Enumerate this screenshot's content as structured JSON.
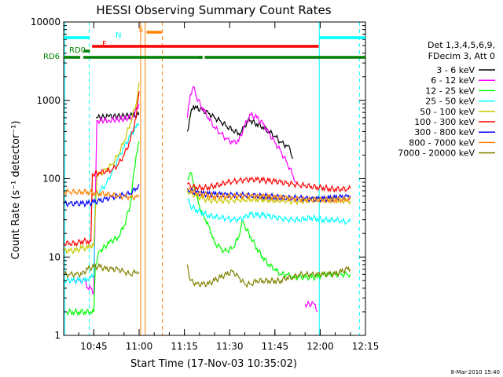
{
  "chart_data": {
    "type": "line",
    "title": "HESSI Observing Summary Count Rates",
    "xlabel": "Start Time (17-Nov-03 10:35:02)",
    "ylabel": "Count Rate (s⁻¹ detector⁻¹)",
    "y_scale": "log",
    "ylim": [
      1,
      10000
    ],
    "xlim_minutes_after_10_35": [
      0,
      100
    ],
    "x_ticks": [
      {
        "label": "10:45",
        "minute": 10
      },
      {
        "label": "11:00",
        "minute": 25
      },
      {
        "label": "11:15",
        "minute": 40
      },
      {
        "label": "11:30",
        "minute": 55
      },
      {
        "label": "11:45",
        "minute": 70
      },
      {
        "label": "12:00",
        "minute": 85
      },
      {
        "label": "12:15",
        "minute": 100
      }
    ],
    "y_ticks": [
      {
        "label": "1",
        "value": 1
      },
      {
        "label": "10",
        "value": 10
      },
      {
        "label": "100",
        "value": 100
      },
      {
        "label": "1000",
        "value": 1000
      },
      {
        "label": "10000",
        "value": 10000
      }
    ],
    "legend_header": [
      "Det 1,3,4,5,6,9,",
      "FDecim 3, Att 0"
    ],
    "legend_position": "right",
    "series": [
      {
        "name": "3 - 6 keV",
        "color": "#000000",
        "x": [
          10.7,
          11,
          15,
          20,
          23,
          25,
          25.3,
          26,
          30,
          40,
          41,
          42,
          43,
          44,
          46,
          48,
          50,
          52,
          54,
          56,
          58,
          59,
          60,
          61,
          62,
          64,
          66,
          68,
          70,
          72,
          74,
          75,
          76
        ],
        "y": [
          600,
          600,
          620,
          630,
          640,
          650,
          null,
          null,
          null,
          null,
          400,
          650,
          850,
          800,
          750,
          680,
          600,
          540,
          470,
          420,
          380,
          400,
          470,
          550,
          550,
          500,
          460,
          400,
          350,
          290,
          260,
          240,
          180
        ]
      },
      {
        "name": "6 - 12 keV",
        "color": "#ff00ff",
        "x": [
          3,
          5,
          7,
          8,
          9,
          10,
          10.5,
          11,
          15,
          20,
          23,
          25,
          25.3,
          41,
          42,
          43,
          44,
          46,
          48,
          50,
          52,
          54,
          56,
          58,
          60,
          62,
          64,
          66,
          68,
          70,
          72,
          74,
          76,
          77,
          77.5,
          80,
          83,
          84
        ],
        "y": [
          5,
          5,
          5,
          4,
          4,
          3.5,
          50,
          550,
          560,
          580,
          620,
          900,
          null,
          600,
          1200,
          1500,
          1100,
          800,
          600,
          450,
          380,
          320,
          290,
          300,
          480,
          650,
          600,
          500,
          380,
          290,
          220,
          160,
          110,
          90,
          null,
          2.5,
          2.5,
          2
        ]
      },
      {
        "name": "12 - 25 keV",
        "color": "#00ff00",
        "x": [
          1,
          3,
          5,
          7,
          9,
          10,
          10.5,
          12,
          15,
          18,
          20,
          22,
          24,
          25,
          25.3,
          41,
          42,
          43,
          44,
          45,
          46,
          47,
          48,
          49,
          50,
          52,
          53,
          54,
          56,
          58,
          59,
          60,
          62,
          64,
          66,
          68,
          70,
          72,
          74,
          76,
          78,
          80,
          82,
          84,
          86,
          88,
          90,
          92,
          94,
          95
        ],
        "y": [
          2,
          2,
          2,
          2,
          2,
          2,
          8,
          12,
          15,
          18,
          25,
          45,
          200,
          300,
          null,
          100,
          120,
          90,
          60,
          45,
          35,
          30,
          25,
          20,
          15,
          13,
          12,
          12,
          13,
          18,
          28,
          25,
          18,
          13,
          10,
          8,
          7,
          6,
          6,
          5.5,
          5.5,
          5.5,
          5.5,
          5.5,
          6,
          6,
          6,
          6,
          6,
          6
        ]
      },
      {
        "name": "25 - 50 keV",
        "color": "#00ffff",
        "x": [
          0,
          1,
          3,
          5,
          7,
          8,
          9,
          10,
          10.5,
          12,
          14,
          16,
          18,
          20,
          22,
          24,
          25,
          25.3,
          41,
          42,
          44,
          46,
          48,
          50,
          52,
          54,
          56,
          58,
          60,
          62,
          64,
          66,
          68,
          70,
          72,
          74,
          76,
          78,
          80,
          82,
          84,
          86,
          88,
          90,
          92,
          94,
          95
        ],
        "y": [
          5,
          5,
          5,
          5,
          5,
          5.2,
          5.5,
          6,
          60,
          70,
          85,
          120,
          180,
          250,
          350,
          450,
          500,
          null,
          55,
          45,
          40,
          37,
          34,
          33,
          32,
          31,
          30,
          30,
          32,
          35,
          34,
          34,
          33,
          32,
          31,
          30,
          30,
          30,
          31,
          32,
          31,
          30,
          30,
          30,
          29,
          28,
          28
        ]
      },
      {
        "name": "50 - 100 keV",
        "color": "#c8c800",
        "x": [
          0,
          2,
          4,
          6,
          8,
          9,
          10,
          11,
          12,
          14,
          16,
          18,
          20,
          22,
          24,
          25,
          25.3,
          41,
          42,
          44,
          46,
          48,
          50,
          52,
          54,
          56,
          58,
          60,
          62,
          64,
          66,
          68,
          70,
          72,
          74,
          76,
          78,
          80,
          82,
          84,
          86,
          88,
          90,
          92,
          94,
          95
        ],
        "y": [
          12,
          12,
          12,
          13,
          13,
          14,
          14,
          110,
          115,
          130,
          150,
          200,
          300,
          500,
          900,
          1700,
          null,
          70,
          65,
          60,
          56,
          53,
          52,
          52,
          52,
          53,
          54,
          54,
          55,
          55,
          55,
          54,
          53,
          53,
          52,
          51,
          51,
          52,
          53,
          54,
          54,
          54,
          53,
          53,
          52,
          52
        ]
      },
      {
        "name": "100 - 300 keV",
        "color": "#ff0000",
        "x": [
          0,
          2,
          4,
          6,
          8,
          9,
          9.5,
          12,
          14,
          16,
          18,
          20,
          22,
          24,
          25,
          25.3,
          41,
          42,
          44,
          46,
          48,
          50,
          52,
          54,
          56,
          58,
          60,
          62,
          64,
          66,
          68,
          70,
          72,
          74,
          76,
          78,
          80,
          82,
          84,
          86,
          88,
          90,
          92,
          94,
          95
        ],
        "y": [
          15,
          15,
          15,
          16,
          16,
          16,
          115,
          120,
          125,
          130,
          150,
          200,
          300,
          600,
          1300,
          null,
          85,
          80,
          78,
          77,
          78,
          82,
          85,
          90,
          92,
          94,
          96,
          97,
          97,
          95,
          93,
          92,
          90,
          87,
          85,
          83,
          82,
          80,
          78,
          77,
          75,
          74,
          74,
          74,
          75
        ]
      },
      {
        "name": "300 - 800 keV",
        "color": "#0000ff",
        "x": [
          0,
          2,
          4,
          6,
          8,
          10,
          12,
          14,
          16,
          18,
          20,
          22,
          24,
          25,
          25.3,
          41,
          42,
          44,
          46,
          48,
          50,
          52,
          54,
          56,
          58,
          60,
          62,
          64,
          66,
          68,
          70,
          72,
          74,
          76,
          78,
          80,
          82,
          84,
          86,
          88,
          90,
          92,
          94,
          95
        ],
        "y": [
          48,
          48,
          48,
          48,
          48,
          50,
          52,
          55,
          58,
          60,
          62,
          65,
          75,
          85,
          null,
          75,
          70,
          66,
          64,
          63,
          63,
          63,
          62,
          62,
          62,
          62,
          61,
          61,
          60,
          60,
          59,
          58,
          57,
          57,
          57,
          56,
          55,
          55,
          55,
          56,
          57,
          58,
          59,
          60
        ]
      },
      {
        "name": "800 - 7000 keV",
        "color": "#ff8000",
        "x": [
          0,
          2,
          4,
          6,
          8,
          10,
          12,
          14,
          16,
          18,
          20,
          22,
          24,
          25,
          25.3,
          41,
          42,
          44,
          46,
          48,
          50,
          52,
          54,
          56,
          58,
          60,
          62,
          64,
          66,
          68,
          70,
          72,
          74,
          76,
          78,
          80,
          82,
          84,
          86,
          88,
          90,
          92,
          94,
          95
        ],
        "y": [
          68,
          68,
          68,
          68,
          68,
          66,
          65,
          64,
          62,
          60,
          59,
          58,
          58,
          58,
          null,
          72,
          70,
          66,
          64,
          62,
          60,
          60,
          60,
          60,
          60,
          60,
          60,
          59,
          59,
          58,
          57,
          57,
          56,
          55,
          55,
          54,
          54,
          54,
          54,
          54,
          54,
          54,
          55,
          55
        ]
      },
      {
        "name": "7000 - 20000 keV",
        "color": "#808000",
        "x": [
          0,
          2,
          4,
          6,
          8,
          10,
          12,
          14,
          16,
          18,
          20,
          22,
          24,
          25,
          25.3,
          41,
          42,
          44,
          46,
          48,
          50,
          52,
          54,
          56,
          58,
          60,
          62,
          64,
          66,
          68,
          70,
          72,
          74,
          76,
          78,
          80,
          82,
          84,
          86,
          88,
          90,
          92,
          94,
          95
        ],
        "y": [
          6,
          6,
          6,
          6,
          7,
          7.5,
          7.5,
          7,
          7,
          7,
          6.5,
          6,
          6.5,
          6.5,
          null,
          8,
          5,
          4.5,
          4.5,
          4.5,
          5,
          5.5,
          6,
          6.5,
          5.5,
          4.5,
          4.5,
          5,
          5,
          5,
          5,
          5,
          5.5,
          5.5,
          6,
          6,
          6,
          6,
          6,
          6,
          6,
          6.5,
          7,
          7
        ]
      }
    ],
    "flag_bars": [
      {
        "label": "N",
        "color": "#00ffff",
        "segments": [
          [
            0,
            8.5
          ],
          [
            84.7,
            100
          ]
        ]
      },
      {
        "label": "S",
        "color": "#ff8000",
        "segments": [
          [
            27.5,
            32.5
          ]
        ]
      },
      {
        "label": "F",
        "color": "#ff0000",
        "segments": [
          [
            9.4,
            84.5
          ]
        ]
      },
      {
        "label": "RD0",
        "color": "#008000",
        "segments": [
          [
            6.6,
            8.7
          ]
        ]
      },
      {
        "label": "RD6",
        "color": "#008000",
        "segments": [
          [
            0,
            5.5
          ],
          [
            6.5,
            44
          ],
          [
            44.4,
            46
          ],
          [
            44,
            46
          ],
          [
            46.7,
            100
          ]
        ]
      }
    ],
    "vertical_markers": [
      {
        "minute": 0.4,
        "color": "#00ffff",
        "style": "solid"
      },
      {
        "minute": 8.5,
        "color": "#00ffff",
        "style": "dashed"
      },
      {
        "minute": 25.5,
        "color": "#ff8000",
        "style": "solid"
      },
      {
        "minute": 27.0,
        "color": "#ff8000",
        "style": "solid"
      },
      {
        "minute": 32.7,
        "color": "#ff8000",
        "style": "dashed"
      },
      {
        "minute": 84.7,
        "color": "#00ffff",
        "style": "solid"
      },
      {
        "minute": 98.0,
        "color": "#00ffff",
        "style": "dashed"
      }
    ]
  },
  "footer_date": "8-Mar-2010 15:40"
}
